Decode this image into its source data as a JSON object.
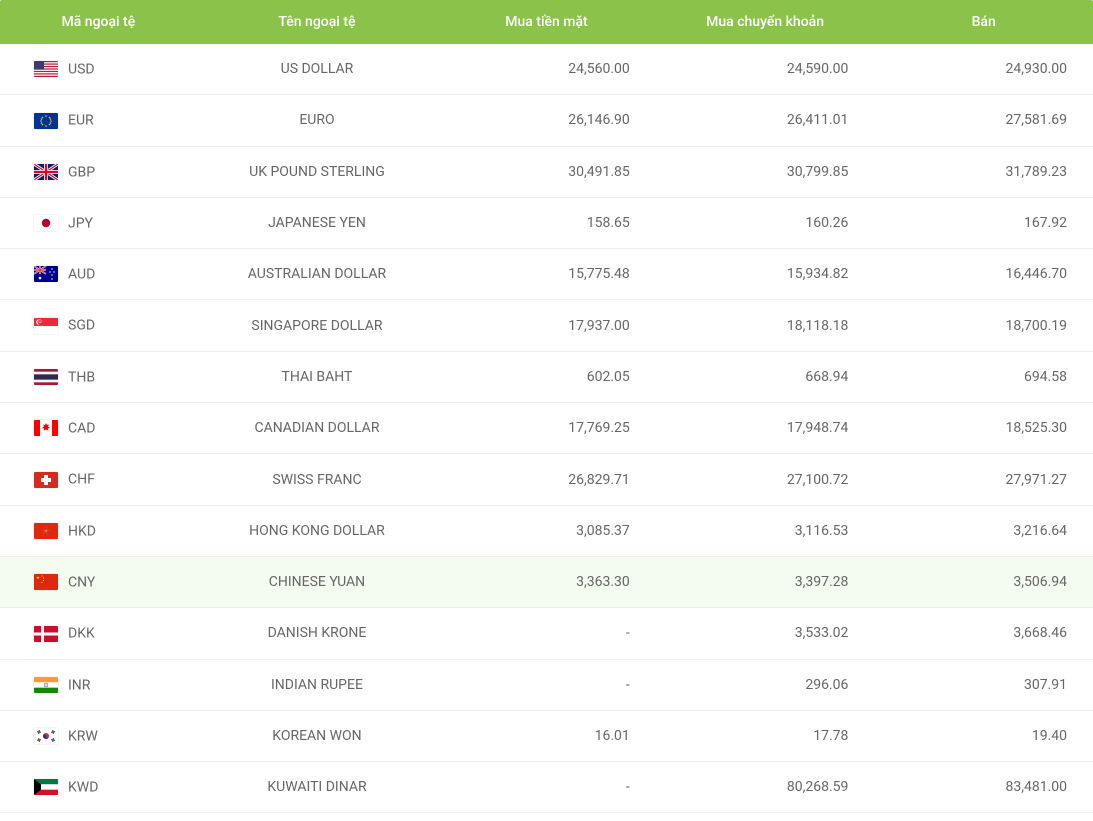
{
  "table": {
    "header_bg": "#8bc34a",
    "header_color": "#ffffff",
    "row_border_color": "#eeeeee",
    "highlight_bg": "#f4fbef",
    "text_color": "#666666",
    "font_size": 14,
    "columns": [
      {
        "key": "code",
        "label": "Mã ngoại tệ",
        "align": "left"
      },
      {
        "key": "name",
        "label": "Tên ngoại tệ",
        "align": "center"
      },
      {
        "key": "buy_cash",
        "label": "Mua tiền mặt",
        "align": "right"
      },
      {
        "key": "buy_xfer",
        "label": "Mua chuyển khoản",
        "align": "right"
      },
      {
        "key": "sell",
        "label": "Bán",
        "align": "right"
      }
    ],
    "rows": [
      {
        "code": "USD",
        "name": "US DOLLAR",
        "buy_cash": "24,560.00",
        "buy_xfer": "24,590.00",
        "sell": "24,930.00",
        "flag": "us",
        "highlight": false
      },
      {
        "code": "EUR",
        "name": "EURO",
        "buy_cash": "26,146.90",
        "buy_xfer": "26,411.01",
        "sell": "27,581.69",
        "flag": "eu",
        "highlight": false
      },
      {
        "code": "GBP",
        "name": "UK POUND STERLING",
        "buy_cash": "30,491.85",
        "buy_xfer": "30,799.85",
        "sell": "31,789.23",
        "flag": "gb",
        "highlight": false
      },
      {
        "code": "JPY",
        "name": "JAPANESE YEN",
        "buy_cash": "158.65",
        "buy_xfer": "160.26",
        "sell": "167.92",
        "flag": "jp",
        "highlight": false
      },
      {
        "code": "AUD",
        "name": "AUSTRALIAN DOLLAR",
        "buy_cash": "15,775.48",
        "buy_xfer": "15,934.82",
        "sell": "16,446.70",
        "flag": "au",
        "highlight": false
      },
      {
        "code": "SGD",
        "name": "SINGAPORE DOLLAR",
        "buy_cash": "17,937.00",
        "buy_xfer": "18,118.18",
        "sell": "18,700.19",
        "flag": "sg",
        "highlight": false
      },
      {
        "code": "THB",
        "name": "THAI BAHT",
        "buy_cash": "602.05",
        "buy_xfer": "668.94",
        "sell": "694.58",
        "flag": "th",
        "highlight": false
      },
      {
        "code": "CAD",
        "name": "CANADIAN DOLLAR",
        "buy_cash": "17,769.25",
        "buy_xfer": "17,948.74",
        "sell": "18,525.30",
        "flag": "ca",
        "highlight": false
      },
      {
        "code": "CHF",
        "name": "SWISS FRANC",
        "buy_cash": "26,829.71",
        "buy_xfer": "27,100.72",
        "sell": "27,971.27",
        "flag": "ch",
        "highlight": false
      },
      {
        "code": "HKD",
        "name": "HONG KONG DOLLAR",
        "buy_cash": "3,085.37",
        "buy_xfer": "3,116.53",
        "sell": "3,216.64",
        "flag": "hk",
        "highlight": false
      },
      {
        "code": "CNY",
        "name": "CHINESE YUAN",
        "buy_cash": "3,363.30",
        "buy_xfer": "3,397.28",
        "sell": "3,506.94",
        "flag": "cn",
        "highlight": true
      },
      {
        "code": "DKK",
        "name": "DANISH KRONE",
        "buy_cash": "-",
        "buy_xfer": "3,533.02",
        "sell": "3,668.46",
        "flag": "dk",
        "highlight": false
      },
      {
        "code": "INR",
        "name": "INDIAN RUPEE",
        "buy_cash": "-",
        "buy_xfer": "296.06",
        "sell": "307.91",
        "flag": "in",
        "highlight": false
      },
      {
        "code": "KRW",
        "name": "KOREAN WON",
        "buy_cash": "16.01",
        "buy_xfer": "17.78",
        "sell": "19.40",
        "flag": "kr",
        "highlight": false
      },
      {
        "code": "KWD",
        "name": "KUWAITI DINAR",
        "buy_cash": "-",
        "buy_xfer": "80,268.59",
        "sell": "83,481.00",
        "flag": "kw",
        "highlight": false
      }
    ]
  },
  "flags_svg": {
    "us": "<rect width='24' height='16' fill='#b22234'/><g fill='#fff'><rect y='1.23' width='24' height='1.23'/><rect y='3.69' width='24' height='1.23'/><rect y='6.15' width='24' height='1.23'/><rect y='8.62' width='24' height='1.23'/><rect y='11.08' width='24' height='1.23'/><rect y='13.54' width='24' height='1.23'/></g><rect width='10' height='8.6' fill='#3c3b6e'/>",
    "eu": "<rect width='24' height='16' fill='#003399'/><g fill='#ffcc00'><circle cx='12' cy='3' r='.8'/><circle cx='12' cy='13' r='.8'/><circle cx='7' cy='8' r='.8'/><circle cx='17' cy='8' r='.8'/><circle cx='8.5' cy='4.5' r='.8'/><circle cx='15.5' cy='4.5' r='.8'/><circle cx='8.5' cy='11.5' r='.8'/><circle cx='15.5' cy='11.5' r='.8'/><circle cx='7.5' cy='6' r='.8'/><circle cx='16.5' cy='6' r='.8'/><circle cx='7.5' cy='10' r='.8'/><circle cx='16.5' cy='10' r='.8'/></g>",
    "gb": "<rect width='24' height='16' fill='#012169'/><path d='M0 0l24 16M24 0L0 16' stroke='#fff' stroke-width='3'/><path d='M0 0l24 16M24 0L0 16' stroke='#c8102e' stroke-width='1.2'/><rect x='10' width='4' height='16' fill='#fff'/><rect y='6' width='24' height='4' fill='#fff'/><rect x='10.8' width='2.4' height='16' fill='#c8102e'/><rect y='6.8' width='24' height='2.4' fill='#c8102e'/>",
    "jp": "<rect width='24' height='16' fill='#fff'/><circle cx='12' cy='8' r='4.2' fill='#bc002d'/>",
    "au": "<rect width='24' height='16' fill='#00008b'/><rect width='12' height='8' fill='#00008b'/><path d='M0 0l12 8M12 0L0 8' stroke='#fff' stroke-width='1.6'/><path d='M0 0l12 8M12 0L0 8' stroke='#c8102e' stroke-width='.7'/><rect x='5' width='2' height='8' fill='#fff'/><rect y='3' width='12' height='2' fill='#fff'/><rect x='5.4' width='1.2' height='8' fill='#c8102e'/><rect y='3.4' width='12' height='1.2' fill='#c8102e'/><g fill='#fff'><circle cx='6' cy='12' r='1.3'/><circle cx='18' cy='3' r='.7'/><circle cx='20' cy='6' r='.7'/><circle cx='18' cy='9' r='.7'/><circle cx='16' cy='6' r='.7'/><circle cx='18' cy='13' r='.7'/></g>",
    "sg": "<rect width='24' height='8' fill='#ed2939'/><rect y='8' width='24' height='8' fill='#fff'/><circle cx='5' cy='4' r='2.8' fill='#fff'/><circle cx='6.2' cy='4' r='2.8' fill='#ed2939'/><g fill='#fff'><circle cx='6' cy='1.8' r='.5'/><circle cx='4.8' cy='3' r='.5'/><circle cx='7.2' cy='3' r='.5'/><circle cx='5.2' cy='4.5' r='.5'/><circle cx='6.8' cy='4.5' r='.5'/></g>",
    "th": "<rect width='24' height='16' fill='#a51931'/><rect y='2.67' width='24' height='10.67' fill='#f4f5f8'/><rect y='5.33' width='24' height='5.33' fill='#2d2a4a'/>",
    "ca": "<rect width='24' height='16' fill='#fff'/><rect width='6' height='16' fill='#ff0000'/><rect x='18' width='6' height='16' fill='#ff0000'/><path d='M12 3l1 2 2-.5-1 2 2 1.5-2 .5.3 2-2.3-1-2.3 1 .3-2-2-.5 2-1.5-1-2 2 .5z' fill='#ff0000'/>",
    "ch": "<rect width='24' height='16' fill='#d52b1e'/><rect x='10' y='3' width='4' height='10' fill='#fff'/><rect x='7' y='6' width='10' height='4' fill='#fff'/>",
    "hk": "<rect width='24' height='16' fill='#de2910'/><g fill='#fff' transform='translate(12 8)'><path d='M0-4c1 1 .5 3-.5 3.5C.5 0 1-2 0-4z'/><path d='M0-4c1 1 .5 3-.5 3.5C.5 0 1-2 0-4z' transform='rotate(72)'/><path d='M0-4c1 1 .5 3-.5 3.5C.5 0 1-2 0-4z' transform='rotate(144)'/><path d='M0-4c1 1 .5 3-.5 3.5C.5 0 1-2 0-4z' transform='rotate(216)'/><path d='M0-4c1 1 .5 3-.5 3.5C.5 0 1-2 0-4z' transform='rotate(288)'/></g>",
    "cn": "<rect width='24' height='16' fill='#de2910'/><g fill='#ffde00'><polygon points='4,2 5,5 2,3.1 6,3.1 3,5'/><circle cx='8' cy='2' r='.6'/><circle cx='9.5' cy='4' r='.6'/><circle cx='9.5' cy='6.5' r='.6'/><circle cx='8' cy='8.5' r='.6'/></g>",
    "dk": "<rect width='24' height='16' fill='#c8102e'/><rect x='7' width='3' height='16' fill='#fff'/><rect y='6.5' width='24' height='3' fill='#fff'/>",
    "in": "<rect width='24' height='5.33' fill='#ff9933'/><rect y='5.33' width='24' height='5.33' fill='#fff'/><rect y='10.67' width='24' height='5.33' fill='#138808'/><circle cx='12' cy='8' r='2' fill='none' stroke='#000080' stroke-width='.4'/><circle cx='12' cy='8' r='.4' fill='#000080'/>",
    "kr": "<rect width='24' height='16' fill='#fff'/><circle cx='12' cy='8' r='3' fill='#cd2e3a'/><path d='M9 8a3 3 0 006 0 1.5 1.5 0 01-3 0 1.5 1.5 0 00-3 0z' fill='#0047a0'/><g stroke='#000' stroke-width='.7'><g transform='translate(5 4) rotate(-30)'><line x1='-1.5' x2='1.5'/><line x1='-1.5' x2='1.5' y1='1' y2='1'/><line x1='-1.5' x2='1.5' y1='-1' y2='-1'/></g><g transform='translate(19 4) rotate(30)'><line x1='-1.5' x2='1.5'/><line x1='-1.5' x2='1.5' y1='1' y2='1'/><line x1='-1.5' x2='1.5' y1='-1' y2='-1'/></g><g transform='translate(5 12) rotate(30)'><line x1='-1.5' x2='1.5'/><line x1='-1.5' x2='1.5' y1='1' y2='1'/><line x1='-1.5' x2='1.5' y1='-1' y2='-1'/></g><g transform='translate(19 12) rotate(-30)'><line x1='-1.5' x2='1.5'/><line x1='-1.5' x2='1.5' y1='1' y2='1'/><line x1='-1.5' x2='1.5' y1='-1' y2='-1'/></g></g>",
    "kw": "<rect width='24' height='5.33' fill='#007a3d'/><rect y='5.33' width='24' height='5.33' fill='#fff'/><rect y='10.67' width='24' height='5.33' fill='#ce1126'/><polygon points='0,0 7,5.33 7,10.67 0,16' fill='#000'/>"
  }
}
